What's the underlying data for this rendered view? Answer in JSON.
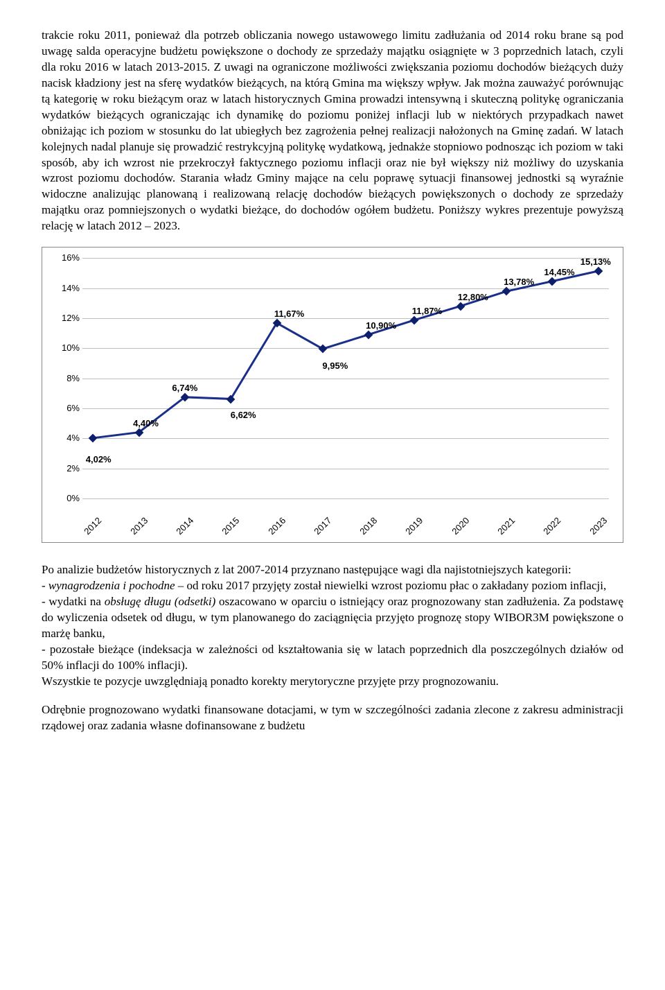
{
  "paragraphs": {
    "p1": "trakcie roku 2011, ponieważ dla potrzeb obliczania nowego ustawowego limitu zadłużania od 2014 roku brane są pod uwagę salda operacyjne budżetu powiększone o dochody ze sprzedaży majątku osiągnięte w 3 poprzednich latach, czyli dla roku 2016 w latach 2013-2015. Z uwagi na ograniczone możliwości zwiększania poziomu dochodów bieżących duży nacisk kładziony jest na sferę wydatków bieżących, na którą Gmina ma większy wpływ. Jak można zauważyć porównując tą kategorię w roku bieżącym oraz w latach historycznych Gmina prowadzi intensywną i skuteczną politykę ograniczania wydatków bieżących ograniczając ich dynamikę do poziomu poniżej inflacji lub w niektórych przypadkach nawet obniżając ich poziom w stosunku do lat ubiegłych bez zagrożenia pełnej realizacji nałożonych na Gminę zadań. W latach kolejnych nadal planuje się prowadzić restrykcyjną politykę wydatkową, jednakże stopniowo podnosząc ich poziom w taki sposób, aby ich wzrost nie przekroczył faktycznego poziomu inflacji oraz nie był większy niż możliwy do uzyskania wzrost poziomu dochodów. Starania władz Gminy mające na celu poprawę sytuacji finansowej jednostki są wyraźnie widoczne analizując planowaną i realizowaną relację dochodów bieżących powiększonych o dochody ze sprzedaży majątku oraz pomniejszonych o wydatki bieżące, do dochodów ogółem budżetu. Poniższy wykres prezentuje powyższą relację w latach 2012 – 2023.",
    "p2_pre": "Po analizie budżetów historycznych z lat 2007-2014 przyznano następujące wagi dla najistotniejszych kategorii:",
    "p2_item1_a": "- ",
    "p2_item1_i": "wynagrodzenia i pochodne",
    "p2_item1_b": " – od roku 2017 przyjęty został niewielki wzrost poziomu płac o zakładany poziom inflacji,",
    "p2_item2_a": "- wydatki na ",
    "p2_item2_i": "obsługę długu (odsetki)",
    "p2_item2_b": " oszacowano w oparciu o istniejący oraz prognozowany stan zadłużenia. Za podstawę do wyliczenia odsetek od długu, w tym planowanego do zaciągnięcia przyjęto prognozę stopy WIBOR3M powiększone o marżę banku,",
    "p2_item3": "- pozostałe bieżące (indeksacja w zależności od kształtowania się w latach poprzednich dla poszczególnych działów od 50% inflacji do 100% inflacji).",
    "p2_post": "Wszystkie te pozycje uwzględniają ponadto korekty merytoryczne przyjęte przy prognozowaniu.",
    "p3": "Odrębnie prognozowano wydatki finansowane dotacjami, w tym w szczególności zadania zlecone z zakresu administracji rządowej oraz zadania własne dofinansowane z budżetu"
  },
  "chart": {
    "type": "line",
    "line_color": "#1a2f8a",
    "line_width": 3,
    "marker_color": "#0d1f6b",
    "grid_color": "#c0c0c0",
    "background_color": "#ffffff",
    "ymin": 0,
    "ymax": 16,
    "ystep": 2,
    "yticks": [
      "0%",
      "2%",
      "4%",
      "6%",
      "8%",
      "10%",
      "12%",
      "14%",
      "16%"
    ],
    "years": [
      "2012",
      "2013",
      "2014",
      "2015",
      "2016",
      "2017",
      "2018",
      "2019",
      "2020",
      "2021",
      "2022",
      "2023"
    ],
    "values": [
      4.02,
      4.4,
      6.74,
      6.62,
      11.67,
      9.95,
      10.9,
      11.87,
      12.8,
      13.78,
      14.45,
      15.13
    ],
    "labels": [
      "4,02%",
      "4,40%",
      "6,74%",
      "6,62%",
      "11,67%",
      "9,95%",
      "10,90%",
      "11,87%",
      "12,80%",
      "13,78%",
      "14,45%",
      "15,13%"
    ],
    "label_dy": [
      22,
      -22,
      -22,
      14,
      -22,
      16,
      -22,
      -22,
      -22,
      -22,
      -22,
      -22
    ],
    "label_dx": [
      8,
      10,
      0,
      18,
      18,
      18,
      18,
      18,
      18,
      18,
      10,
      -4
    ]
  }
}
